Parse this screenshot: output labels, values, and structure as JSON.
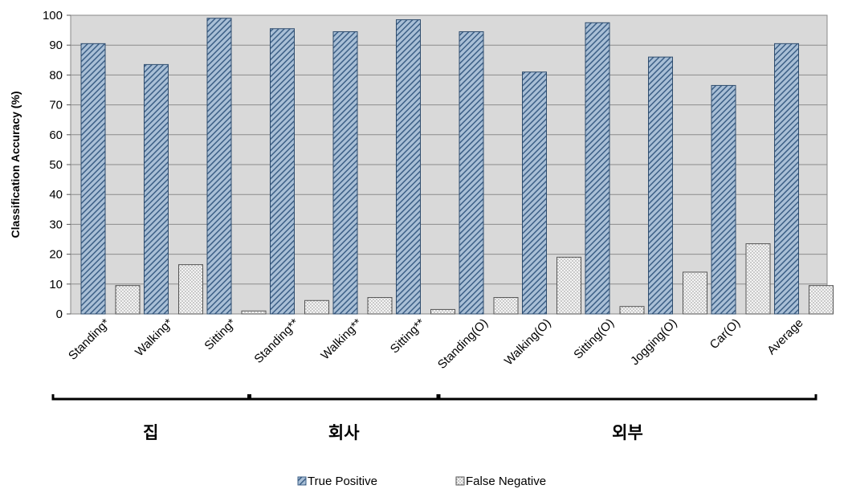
{
  "chart_data": {
    "type": "bar",
    "ylabel": "Classification Accuracy (%)",
    "xlabel": "",
    "ylim": [
      0,
      100
    ],
    "yticks": [
      0,
      10,
      20,
      30,
      40,
      50,
      60,
      70,
      80,
      90,
      100
    ],
    "grid": true,
    "categories": [
      "Standing*",
      "Walking*",
      "Sitting*",
      "Standing**",
      "Walking**",
      "Sitting**",
      "Standing(O)",
      "Walking(O)",
      "Sitting(O)",
      "Jogging(O)",
      "Car(O)",
      "Average"
    ],
    "series": [
      {
        "name": "True Positive",
        "values": [
          90.5,
          83.5,
          99,
          95.5,
          94.5,
          98.5,
          94.5,
          81,
          97.5,
          86,
          76.5,
          90.5
        ]
      },
      {
        "name": "False Negative",
        "values": [
          9.5,
          16.5,
          1,
          4.5,
          5.5,
          1.5,
          5.5,
          19,
          2.5,
          14,
          23.5,
          9.5
        ]
      }
    ],
    "groups": [
      {
        "label": "집",
        "from": 0,
        "to": 2
      },
      {
        "label": "회사",
        "from": 3,
        "to": 5
      },
      {
        "label": "외부",
        "from": 6,
        "to": 11
      }
    ],
    "legend_position": "bottom-center",
    "colors": {
      "true_positive": "#5b7fa6",
      "false_negative": "#f2f2f2",
      "plot_bg": "#d9d9d9"
    }
  }
}
